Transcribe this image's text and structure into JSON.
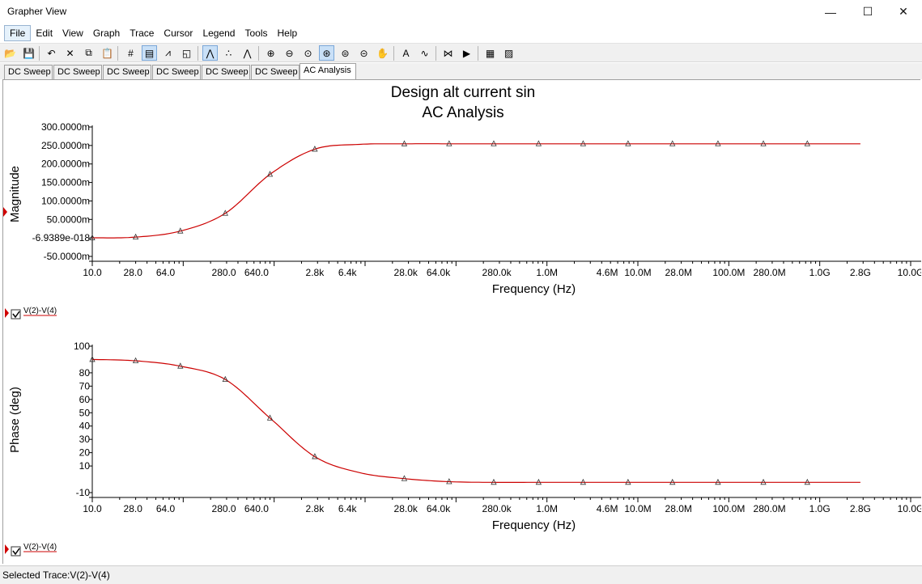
{
  "window": {
    "title": "Grapher View",
    "minimize": "—",
    "maximize": "☐",
    "close": "✕"
  },
  "menu": [
    "File",
    "Edit",
    "View",
    "Graph",
    "Trace",
    "Cursor",
    "Legend",
    "Tools",
    "Help"
  ],
  "toolbar": {
    "icons": [
      "open-icon",
      "save-icon",
      "undo-icon",
      "cut-icon",
      "copy-icon",
      "paste-icon",
      "grid-icon",
      "legend-icon",
      "select-marks-icon",
      "overlay-icon",
      "show-lines-icon",
      "show-points-icon",
      "show-lines-points-icon",
      "zoom-in-icon",
      "zoom-out-icon",
      "zoom-area-icon",
      "zoom-full-icon",
      "zoom-x-icon",
      "zoom-y-icon",
      "pan-icon",
      "text-icon",
      "fft-icon",
      "compare-icon",
      "export-icon",
      "print-icon",
      "export-data-icon"
    ],
    "glyphs": [
      "📂",
      "💾",
      "↶",
      "✕",
      "⧉",
      "📋",
      "#",
      "▤",
      "⩘",
      "◱",
      "⋀",
      "∴",
      "⋀",
      "⊕",
      "⊖",
      "⊙",
      "⊛",
      "⊜",
      "⊝",
      "✋",
      "A",
      "∿",
      "⋈",
      "▶",
      "▦",
      "▨"
    ]
  },
  "tabs": [
    "DC Sweep",
    "DC Sweep",
    "DC Sweep",
    "DC Sweep",
    "DC Sweep",
    "DC Sweep",
    "AC Analysis"
  ],
  "active_tab": 6,
  "legend_label": "V(2)-V(4)",
  "status": {
    "selected_trace": "Selected Trace:V(2)-V(4)"
  },
  "chart_data": [
    {
      "type": "line",
      "title": "Design alt current sin",
      "subtitle": "AC Analysis",
      "xlabel": "Frequency (Hz)",
      "ylabel": "Magnitude",
      "x_scale": "log",
      "xlim": [
        10,
        10000000000
      ],
      "ylim": [
        -0.05,
        0.3
      ],
      "x_ticks": [
        {
          "value": 10,
          "label": "10.0"
        },
        {
          "value": 28,
          "label": "28.0"
        },
        {
          "value": 64,
          "label": "64.0"
        },
        {
          "value": 280,
          "label": "280.0"
        },
        {
          "value": 640,
          "label": "640.0"
        },
        {
          "value": 2800,
          "label": "2.8k"
        },
        {
          "value": 6400,
          "label": "6.4k"
        },
        {
          "value": 28000,
          "label": "28.0k"
        },
        {
          "value": 64000,
          "label": "64.0k"
        },
        {
          "value": 280000,
          "label": "280.0k"
        },
        {
          "value": 1000000,
          "label": "1.0M"
        },
        {
          "value": 4600000,
          "label": "4.6M"
        },
        {
          "value": 10000000,
          "label": "10.0M"
        },
        {
          "value": 28000000,
          "label": "28.0M"
        },
        {
          "value": 100000000,
          "label": "100.0M"
        },
        {
          "value": 280000000,
          "label": "280.0M"
        },
        {
          "value": 1000000000,
          "label": "1.0G"
        },
        {
          "value": 2800000000,
          "label": "2.8G"
        },
        {
          "value": 10000000000,
          "label": "10.0G"
        }
      ],
      "y_ticks": [
        {
          "value": 0.3,
          "label": "300.0000m"
        },
        {
          "value": 0.25,
          "label": "250.0000m"
        },
        {
          "value": 0.2,
          "label": "200.0000m"
        },
        {
          "value": 0.15,
          "label": "150.0000m"
        },
        {
          "value": 0.1,
          "label": "100.0000m"
        },
        {
          "value": 0.05,
          "label": "50.0000m"
        },
        {
          "value": 0,
          "label": "-6.9389e-018"
        },
        {
          "value": -0.05,
          "label": "-50.0000m"
        }
      ],
      "series": [
        {
          "name": "V(2)-V(4)",
          "color": "#cc0000",
          "x": [
            10,
            30,
            93,
            290,
            900,
            2800,
            8700,
            27000,
            84000,
            260000,
            810000,
            2500000,
            7800000,
            24000000,
            76000000,
            240000000,
            730000000,
            2800000000
          ],
          "y": [
            0.0002,
            0.0022,
            0.0185,
            0.0665,
            0.172,
            0.24,
            0.253,
            0.2545,
            0.2546,
            0.2546,
            0.2546,
            0.2546,
            0.2546,
            0.2546,
            0.2546,
            0.2546,
            0.2546,
            0.2546
          ],
          "markers": [
            10,
            30,
            93,
            290,
            900,
            2800,
            27000,
            84000,
            260000,
            810000,
            2500000,
            7800000,
            24000000,
            76000000,
            240000000,
            730000000
          ]
        }
      ]
    },
    {
      "type": "line",
      "xlabel": "Frequency (Hz)",
      "ylabel": "Phase (deg)",
      "x_scale": "log",
      "xlim": [
        10,
        10000000000
      ],
      "ylim": [
        -10,
        100
      ],
      "x_ticks": [
        {
          "value": 10,
          "label": "10.0"
        },
        {
          "value": 28,
          "label": "28.0"
        },
        {
          "value": 64,
          "label": "64.0"
        },
        {
          "value": 280,
          "label": "280.0"
        },
        {
          "value": 640,
          "label": "640.0"
        },
        {
          "value": 2800,
          "label": "2.8k"
        },
        {
          "value": 6400,
          "label": "6.4k"
        },
        {
          "value": 28000,
          "label": "28.0k"
        },
        {
          "value": 64000,
          "label": "64.0k"
        },
        {
          "value": 280000,
          "label": "280.0k"
        },
        {
          "value": 1000000,
          "label": "1.0M"
        },
        {
          "value": 4600000,
          "label": "4.6M"
        },
        {
          "value": 10000000,
          "label": "10.0M"
        },
        {
          "value": 28000000,
          "label": "28.0M"
        },
        {
          "value": 100000000,
          "label": "100.0M"
        },
        {
          "value": 280000000,
          "label": "280.0M"
        },
        {
          "value": 1000000000,
          "label": "1.0G"
        },
        {
          "value": 2800000000,
          "label": "2.8G"
        },
        {
          "value": 10000000000,
          "label": "10.0G"
        }
      ],
      "y_ticks": [
        {
          "value": 100,
          "label": "100"
        },
        {
          "value": 80,
          "label": "80"
        },
        {
          "value": 70,
          "label": "70"
        },
        {
          "value": 60,
          "label": "60"
        },
        {
          "value": 50,
          "label": "50"
        },
        {
          "value": 40,
          "label": "40"
        },
        {
          "value": 30,
          "label": "30"
        },
        {
          "value": 20,
          "label": "20"
        },
        {
          "value": 10,
          "label": "10"
        },
        {
          "value": -10,
          "label": "-10"
        }
      ],
      "series": [
        {
          "name": "V(2)-V(4)",
          "color": "#cc0000",
          "x": [
            10,
            30,
            93,
            290,
            900,
            2800,
            8700,
            27000,
            84000,
            260000,
            810000,
            2500000,
            7800000,
            24000000,
            76000000,
            240000000,
            730000000,
            2800000000
          ],
          "y": [
            90,
            89,
            85,
            75,
            46,
            17,
            5,
            0.5,
            -1.8,
            -2.3,
            -2.3,
            -2.3,
            -2.3,
            -2.3,
            -2.3,
            -2.3,
            -2.3,
            -2.3
          ],
          "markers": [
            10,
            30,
            93,
            290,
            900,
            2800,
            27000,
            84000,
            260000,
            810000,
            2500000,
            7800000,
            24000000,
            76000000,
            240000000,
            730000000
          ]
        }
      ]
    }
  ]
}
